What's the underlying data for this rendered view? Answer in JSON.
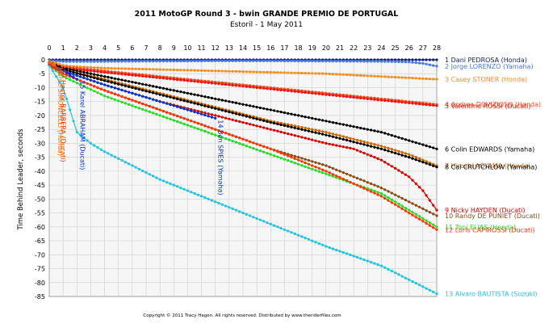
{
  "chart_data": {
    "type": "line",
    "title": "2011 MotoGP Round 3 - bwin GRANDE PREMIO DE PORTUGAL",
    "subtitle": "Estoril - 1 May 2011",
    "xlabel": "",
    "ylabel": "Time Behind Leader, seconds",
    "xlim": [
      0,
      28
    ],
    "ylim": [
      -85,
      0
    ],
    "x_ticks": [
      0,
      1,
      2,
      3,
      4,
      5,
      6,
      7,
      8,
      9,
      10,
      11,
      12,
      13,
      14,
      15,
      16,
      17,
      18,
      19,
      20,
      21,
      22,
      23,
      24,
      25,
      26,
      27,
      28
    ],
    "y_ticks": [
      0,
      -5,
      -10,
      -15,
      -20,
      -25,
      -30,
      -35,
      -40,
      -45,
      -50,
      -55,
      -60,
      -65,
      -70,
      -75,
      -80,
      -85
    ],
    "grid": true,
    "legend": "right",
    "copyright": "Copyright © 2011 Tracy Hagen. All rights reserved. Distributed by www.theriderfiles.com",
    "series": [
      {
        "name": "1 Dani PEDROSA (Honda)",
        "color": "#0a1e8c",
        "end_x": 28,
        "points": [
          [
            0,
            0
          ],
          [
            1,
            0
          ],
          [
            4,
            0
          ],
          [
            8,
            0
          ],
          [
            12,
            0
          ],
          [
            16,
            0
          ],
          [
            20,
            0
          ],
          [
            24,
            0
          ],
          [
            28,
            0
          ]
        ]
      },
      {
        "name": "2 Jorge LORENZO (Yamaha)",
        "color": "#4a78e6",
        "end_x": 28,
        "points": [
          [
            0,
            -0.3
          ],
          [
            1,
            -0.6
          ],
          [
            4,
            -0.6
          ],
          [
            8,
            -0.5
          ],
          [
            12,
            -0.4
          ],
          [
            16,
            -0.4
          ],
          [
            20,
            -0.5
          ],
          [
            24,
            -0.6
          ],
          [
            26,
            -0.8
          ],
          [
            27,
            -1.3
          ],
          [
            28,
            -2.3
          ]
        ]
      },
      {
        "name": "3 Casey STONER (Honda)",
        "color": "#ff8c1a",
        "end_x": 28,
        "points": [
          [
            0,
            -0.5
          ],
          [
            1,
            -2
          ],
          [
            2,
            -2.5
          ],
          [
            4,
            -3
          ],
          [
            8,
            -3.5
          ],
          [
            12,
            -4
          ],
          [
            16,
            -4.5
          ],
          [
            20,
            -5
          ],
          [
            24,
            -6
          ],
          [
            26,
            -6.5
          ],
          [
            28,
            -7
          ]
        ]
      },
      {
        "name": "4 Andrea DOVIZIOSO (Honda)",
        "color": "#ff4a1a",
        "end_x": 28,
        "points": [
          [
            0,
            -1
          ],
          [
            1,
            -2.5
          ],
          [
            4,
            -4
          ],
          [
            8,
            -6
          ],
          [
            12,
            -8
          ],
          [
            16,
            -10
          ],
          [
            20,
            -12
          ],
          [
            24,
            -14
          ],
          [
            26,
            -15
          ],
          [
            28,
            -16
          ]
        ]
      },
      {
        "name": "5 Valentino ROSSI (Ducati)",
        "color": "#ee1111",
        "end_x": 28,
        "points": [
          [
            0,
            -1.2
          ],
          [
            1,
            -3
          ],
          [
            4,
            -4.5
          ],
          [
            8,
            -6.5
          ],
          [
            12,
            -8.5
          ],
          [
            16,
            -10.5
          ],
          [
            20,
            -12.5
          ],
          [
            24,
            -14.5
          ],
          [
            26,
            -15.5
          ],
          [
            28,
            -16.5
          ]
        ]
      },
      {
        "name": "6 Colin EDWARDS (Yamaha)",
        "color": "#000000",
        "end_x": 28,
        "points": [
          [
            0,
            -1
          ],
          [
            1,
            -3
          ],
          [
            4,
            -6
          ],
          [
            8,
            -10
          ],
          [
            12,
            -14
          ],
          [
            16,
            -18
          ],
          [
            20,
            -22
          ],
          [
            24,
            -26
          ],
          [
            26,
            -29
          ],
          [
            28,
            -32
          ]
        ]
      },
      {
        "name": "7 Hiroshi AOYAMA (Honda)",
        "color": "#cc6600",
        "end_x": 28,
        "points": [
          [
            0,
            -1
          ],
          [
            1,
            -3.5
          ],
          [
            4,
            -7
          ],
          [
            8,
            -12
          ],
          [
            12,
            -17
          ],
          [
            16,
            -22
          ],
          [
            20,
            -26
          ],
          [
            24,
            -31
          ],
          [
            26,
            -34
          ],
          [
            28,
            -38
          ]
        ]
      },
      {
        "name": "8 Cal CRUTCHLOW (Yamaha)",
        "color": "#000000",
        "end_x": 28,
        "points": [
          [
            0,
            -1
          ],
          [
            1,
            -3.5
          ],
          [
            4,
            -7.5
          ],
          [
            8,
            -12.5
          ],
          [
            12,
            -17.5
          ],
          [
            16,
            -22.5
          ],
          [
            20,
            -27
          ],
          [
            24,
            -32
          ],
          [
            26,
            -35
          ],
          [
            28,
            -38.5
          ]
        ]
      },
      {
        "name": "9 Nicky HAYDEN (Ducati)",
        "color": "#dd0000",
        "end_x": 28,
        "points": [
          [
            0,
            -1.5
          ],
          [
            1,
            -4
          ],
          [
            4,
            -9
          ],
          [
            8,
            -15
          ],
          [
            12,
            -20
          ],
          [
            16,
            -25
          ],
          [
            20,
            -30
          ],
          [
            22,
            -32
          ],
          [
            24,
            -36
          ],
          [
            26,
            -42
          ],
          [
            27,
            -47
          ],
          [
            28,
            -54
          ]
        ]
      },
      {
        "name": "10 Randy DE PUNIET (Ducati)",
        "color": "#8a4a10",
        "end_x": 28,
        "points": [
          [
            0,
            -1.5
          ],
          [
            1,
            -5
          ],
          [
            4,
            -11
          ],
          [
            8,
            -18
          ],
          [
            12,
            -25
          ],
          [
            16,
            -32
          ],
          [
            20,
            -38
          ],
          [
            24,
            -46
          ],
          [
            26,
            -51
          ],
          [
            28,
            -56
          ]
        ]
      },
      {
        "name": "11 Toni ELIAS (Honda)",
        "color": "#22dd22",
        "end_x": 28,
        "points": [
          [
            0,
            -2
          ],
          [
            1,
            -6
          ],
          [
            4,
            -13
          ],
          [
            8,
            -20
          ],
          [
            12,
            -27
          ],
          [
            16,
            -34
          ],
          [
            20,
            -41
          ],
          [
            24,
            -48
          ],
          [
            26,
            -54
          ],
          [
            28,
            -60
          ]
        ]
      },
      {
        "name": "12 Loris CAPIROSSI (Ducati)",
        "color": "#ff3300",
        "end_x": 28,
        "points": [
          [
            0,
            -2
          ],
          [
            1,
            -5
          ],
          [
            4,
            -11
          ],
          [
            8,
            -18
          ],
          [
            12,
            -25
          ],
          [
            16,
            -32
          ],
          [
            20,
            -40
          ],
          [
            24,
            -49
          ],
          [
            26,
            -55
          ],
          [
            28,
            -61
          ]
        ]
      },
      {
        "name": "13 Alvaro BAUTISTA (Suzuki)",
        "color": "#22c4e6",
        "end_x": 28,
        "points": [
          [
            0,
            -2
          ],
          [
            1,
            -10
          ],
          [
            2,
            -26
          ],
          [
            3,
            -30
          ],
          [
            4,
            -33
          ],
          [
            8,
            -43
          ],
          [
            12,
            -51
          ],
          [
            16,
            -59
          ],
          [
            20,
            -67
          ],
          [
            24,
            -74
          ],
          [
            28,
            -84
          ]
        ]
      },
      {
        "name": "15 Karel ABRAHAM (Ducati)",
        "color": "#0033cc",
        "end_x": 2,
        "points": [
          [
            0,
            -1.5
          ],
          [
            1,
            -4
          ],
          [
            2,
            -7
          ]
        ]
      },
      {
        "name": "14 Ben SPIES (Yamaha)",
        "color": "#0033cc",
        "end_x": 12,
        "points": [
          [
            0,
            -1.5
          ],
          [
            1,
            -4
          ],
          [
            4,
            -9
          ],
          [
            8,
            -15
          ],
          [
            12,
            -21
          ]
        ]
      },
      {
        "name": "17 Hector BARBERA (Ducati)",
        "color": "#cc4400",
        "end_x": 0.6,
        "points": [
          [
            0,
            -1.5
          ],
          [
            0.6,
            -3
          ]
        ]
      },
      {
        "name": "Marco SIMONCELLI (Honda)",
        "color": "#ff6600",
        "end_x": 0.4,
        "points": [
          [
            0,
            -1
          ],
          [
            0.4,
            -2
          ]
        ]
      }
    ]
  }
}
